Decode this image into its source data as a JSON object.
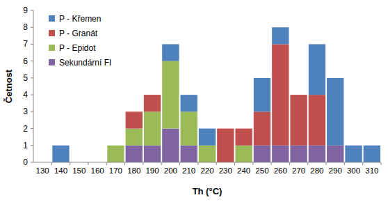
{
  "chart_data": {
    "type": "bar",
    "stacked": true,
    "grid": false,
    "legend": "upper left",
    "x_label": "Th (°C)",
    "y_label": "Četnost",
    "categories": [
      "130",
      "140",
      "150",
      "160",
      "170",
      "180",
      "190",
      "200",
      "210",
      "220",
      "230",
      "240",
      "250",
      "260",
      "270",
      "280",
      "290",
      "300",
      "310"
    ],
    "ylim": [
      0,
      9
    ],
    "yticks": [
      0,
      1,
      2,
      3,
      4,
      5,
      6,
      7,
      8,
      9
    ],
    "series": [
      {
        "name": "P - Křemen",
        "color": "#4f81bd",
        "values": [
          0,
          1,
          0,
          0,
          0,
          0,
          0,
          1,
          1,
          1,
          0,
          0,
          2,
          1,
          0,
          3,
          4,
          1,
          1
        ]
      },
      {
        "name": "P - Granát",
        "color": "#c0504d",
        "values": [
          0,
          0,
          0,
          0,
          0,
          1,
          1,
          0,
          0,
          0,
          2,
          1,
          2,
          6,
          3,
          3,
          0,
          0,
          0
        ]
      },
      {
        "name": "P - Epidot",
        "color": "#9bbb59",
        "values": [
          0,
          0,
          0,
          0,
          1,
          1,
          2,
          4,
          2,
          1,
          0,
          1,
          0,
          0,
          0,
          0,
          0,
          0,
          0
        ]
      },
      {
        "name": "Sekundární FI",
        "color": "#8064a2",
        "values": [
          0,
          0,
          0,
          0,
          0,
          1,
          1,
          2,
          1,
          0,
          0,
          0,
          1,
          1,
          1,
          1,
          1,
          0,
          0
        ]
      }
    ]
  }
}
